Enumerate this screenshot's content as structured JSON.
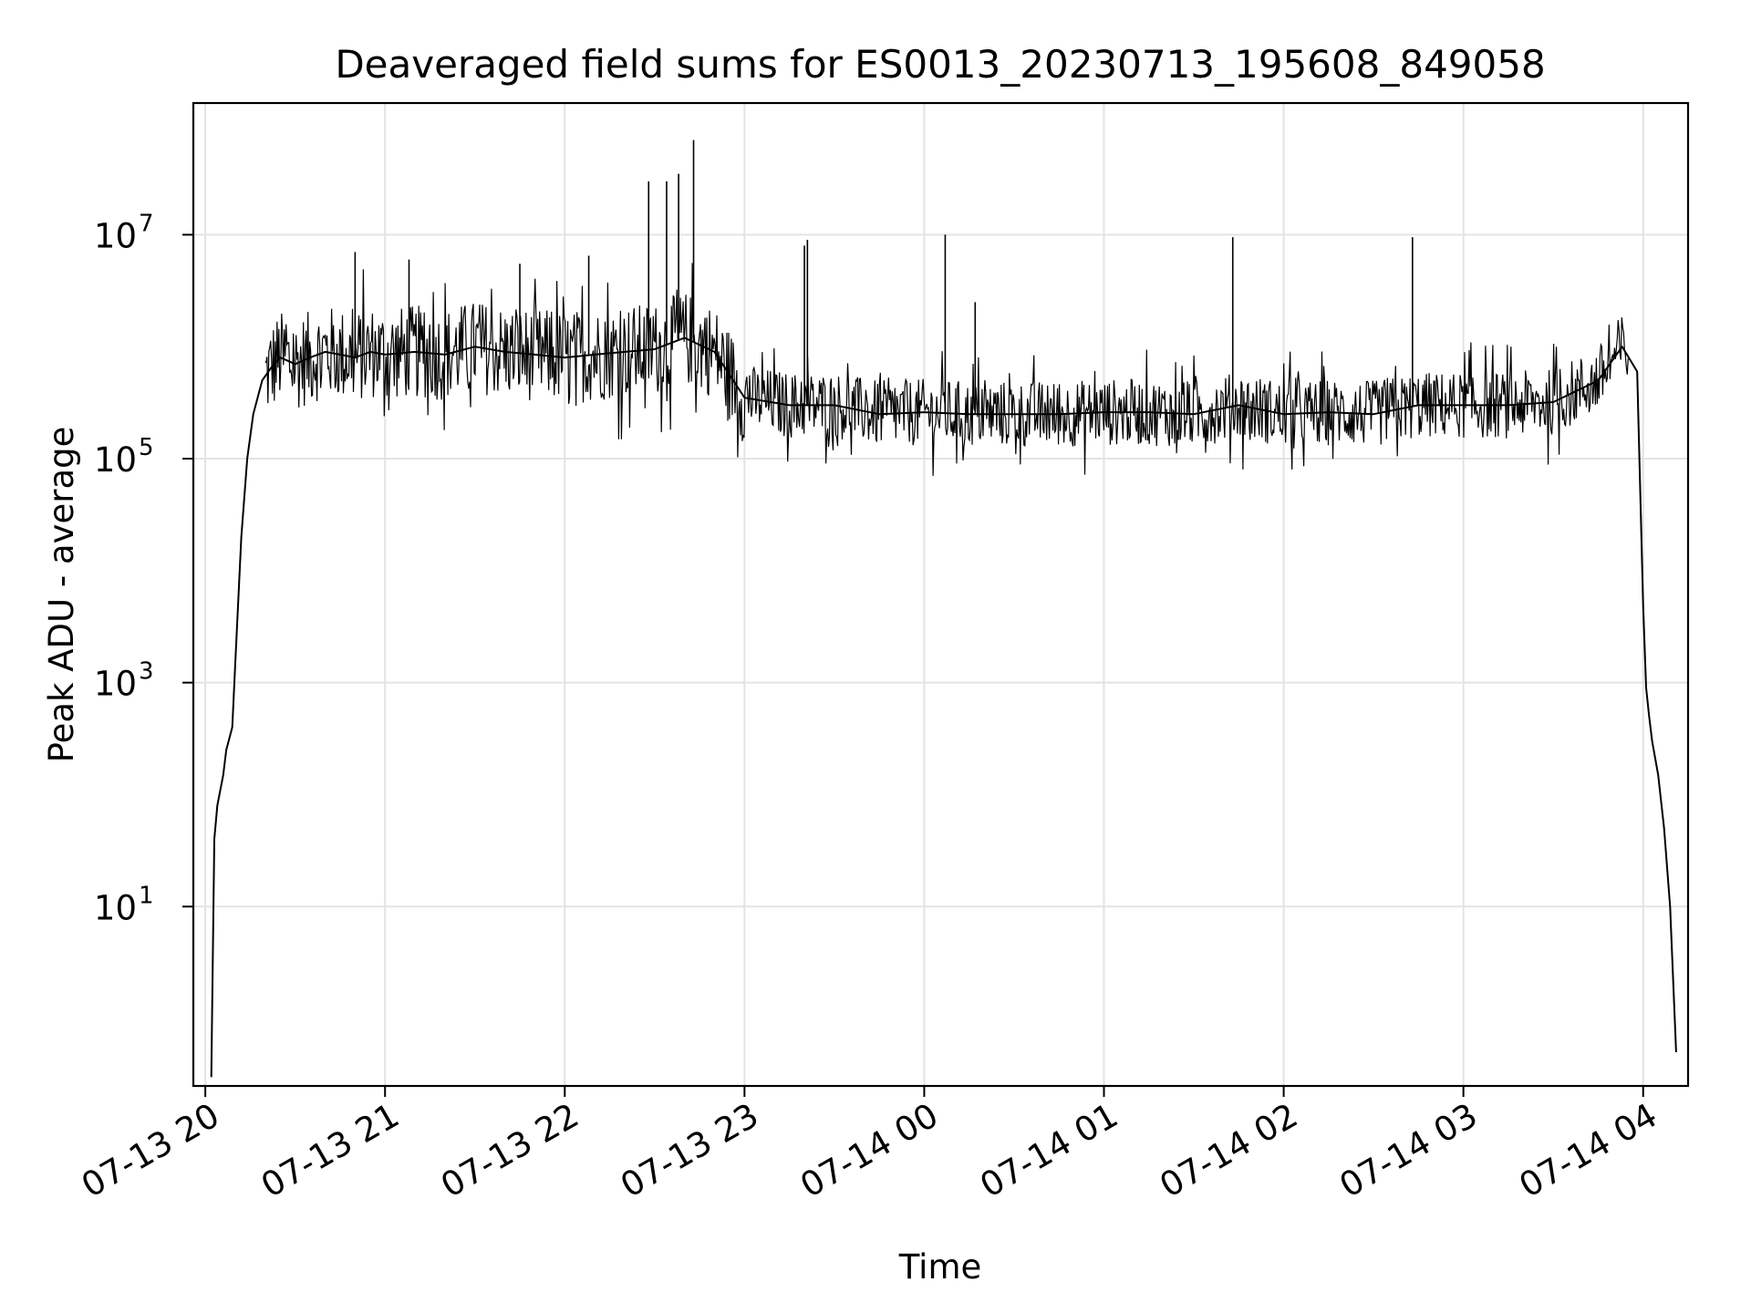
{
  "chart_data": {
    "type": "line",
    "title": "Deaveraged field sums for ES0013_20230713_195608_849058",
    "xlabel": "Time",
    "ylabel": "Peak ADU - average",
    "x_axis_kind": "datetime",
    "y_scale": "log",
    "xlim": [
      "2023-07-13 19:56",
      "2023-07-14 04:15"
    ],
    "ylim": [
      0.25,
      150000000
    ],
    "grid": true,
    "legend": "none",
    "line_color": "#000000",
    "x_ticks": [
      {
        "value": "2023-07-13 20:00",
        "label": "07-13 20"
      },
      {
        "value": "2023-07-13 21:00",
        "label": "07-13 21"
      },
      {
        "value": "2023-07-13 22:00",
        "label": "07-13 22"
      },
      {
        "value": "2023-07-13 23:00",
        "label": "07-13 23"
      },
      {
        "value": "2023-07-14 00:00",
        "label": "07-14 00"
      },
      {
        "value": "2023-07-14 01:00",
        "label": "07-14 01"
      },
      {
        "value": "2023-07-14 02:00",
        "label": "07-14 02"
      },
      {
        "value": "2023-07-14 03:00",
        "label": "07-14 03"
      },
      {
        "value": "2023-07-14 04:00",
        "label": "07-14 04"
      }
    ],
    "y_ticks": [
      {
        "value": 10,
        "base": "10",
        "exp": "1"
      },
      {
        "value": 1000,
        "base": "10",
        "exp": "3"
      },
      {
        "value": 100000,
        "base": "10",
        "exp": "5"
      },
      {
        "value": 10000000,
        "base": "10",
        "exp": "7"
      }
    ],
    "series": [
      {
        "x": [
          "2023-07-13 20:02",
          "2023-07-13 20:03",
          "2023-07-13 20:04",
          "2023-07-13 20:06",
          "2023-07-13 20:07",
          "2023-07-13 20:09",
          "2023-07-13 20:10",
          "2023-07-13 20:12",
          "2023-07-13 20:14",
          "2023-07-13 20:16",
          "2023-07-13 20:19",
          "2023-07-13 20:22",
          "2023-07-13 20:25",
          "2023-07-13 20:30",
          "2023-07-13 20:35",
          "2023-07-13 20:40",
          "2023-07-13 20:45",
          "2023-07-13 20:50",
          "2023-07-13 20:55",
          "2023-07-13 21:00",
          "2023-07-13 21:10",
          "2023-07-13 21:20",
          "2023-07-13 21:30",
          "2023-07-13 21:40",
          "2023-07-13 21:50",
          "2023-07-13 22:00",
          "2023-07-13 22:10",
          "2023-07-13 22:20",
          "2023-07-13 22:30",
          "2023-07-13 22:40",
          "2023-07-13 22:50",
          "2023-07-13 23:00",
          "2023-07-13 23:15",
          "2023-07-13 23:30",
          "2023-07-13 23:45",
          "2023-07-14 00:00",
          "2023-07-14 00:15",
          "2023-07-14 00:30",
          "2023-07-14 00:45",
          "2023-07-14 01:00",
          "2023-07-14 01:15",
          "2023-07-14 01:30",
          "2023-07-14 01:45",
          "2023-07-14 02:00",
          "2023-07-14 02:15",
          "2023-07-14 02:30",
          "2023-07-14 02:45",
          "2023-07-14 03:00",
          "2023-07-14 03:15",
          "2023-07-14 03:30",
          "2023-07-14 03:45",
          "2023-07-14 03:53",
          "2023-07-14 03:58",
          "2023-07-14 04:00",
          "2023-07-14 04:01",
          "2023-07-14 04:02",
          "2023-07-14 04:03",
          "2023-07-14 04:05",
          "2023-07-14 04:07",
          "2023-07-14 04:09",
          "2023-07-14 04:11"
        ],
        "values": [
          0.3,
          40,
          80,
          150,
          250,
          400,
          1500,
          20000,
          100000,
          250000,
          500000,
          650000,
          800000,
          700000,
          800000,
          900000,
          850000,
          800000,
          900000,
          850000,
          900000,
          850000,
          1000000,
          900000,
          850000,
          800000,
          850000,
          900000,
          950000,
          1200000,
          900000,
          350000,
          300000,
          300000,
          250000,
          260000,
          250000,
          250000,
          250000,
          260000,
          260000,
          250000,
          300000,
          250000,
          260000,
          250000,
          300000,
          300000,
          300000,
          320000,
          500000,
          1000000,
          600000,
          5000,
          900,
          500,
          300,
          150,
          50,
          10,
          0.5
        ]
      }
    ],
    "spikes": [
      {
        "x": "2023-07-13 20:50",
        "value": 7000000
      },
      {
        "x": "2023-07-13 21:08",
        "value": 6000000
      },
      {
        "x": "2023-07-13 21:45",
        "value": 5500000
      },
      {
        "x": "2023-07-13 22:08",
        "value": 6500000
      },
      {
        "x": "2023-07-13 22:28",
        "value": 30000000
      },
      {
        "x": "2023-07-13 22:34",
        "value": 30000000
      },
      {
        "x": "2023-07-13 22:38",
        "value": 35000000
      },
      {
        "x": "2023-07-13 22:43",
        "value": 70000000
      },
      {
        "x": "2023-07-13 23:20",
        "value": 8000000
      },
      {
        "x": "2023-07-13 23:21",
        "value": 9000000
      },
      {
        "x": "2023-07-14 00:07",
        "value": 10000000
      },
      {
        "x": "2023-07-14 00:17",
        "value": 2500000
      },
      {
        "x": "2023-07-14 01:43",
        "value": 9500000
      },
      {
        "x": "2023-07-14 02:43",
        "value": 9500000
      }
    ]
  }
}
